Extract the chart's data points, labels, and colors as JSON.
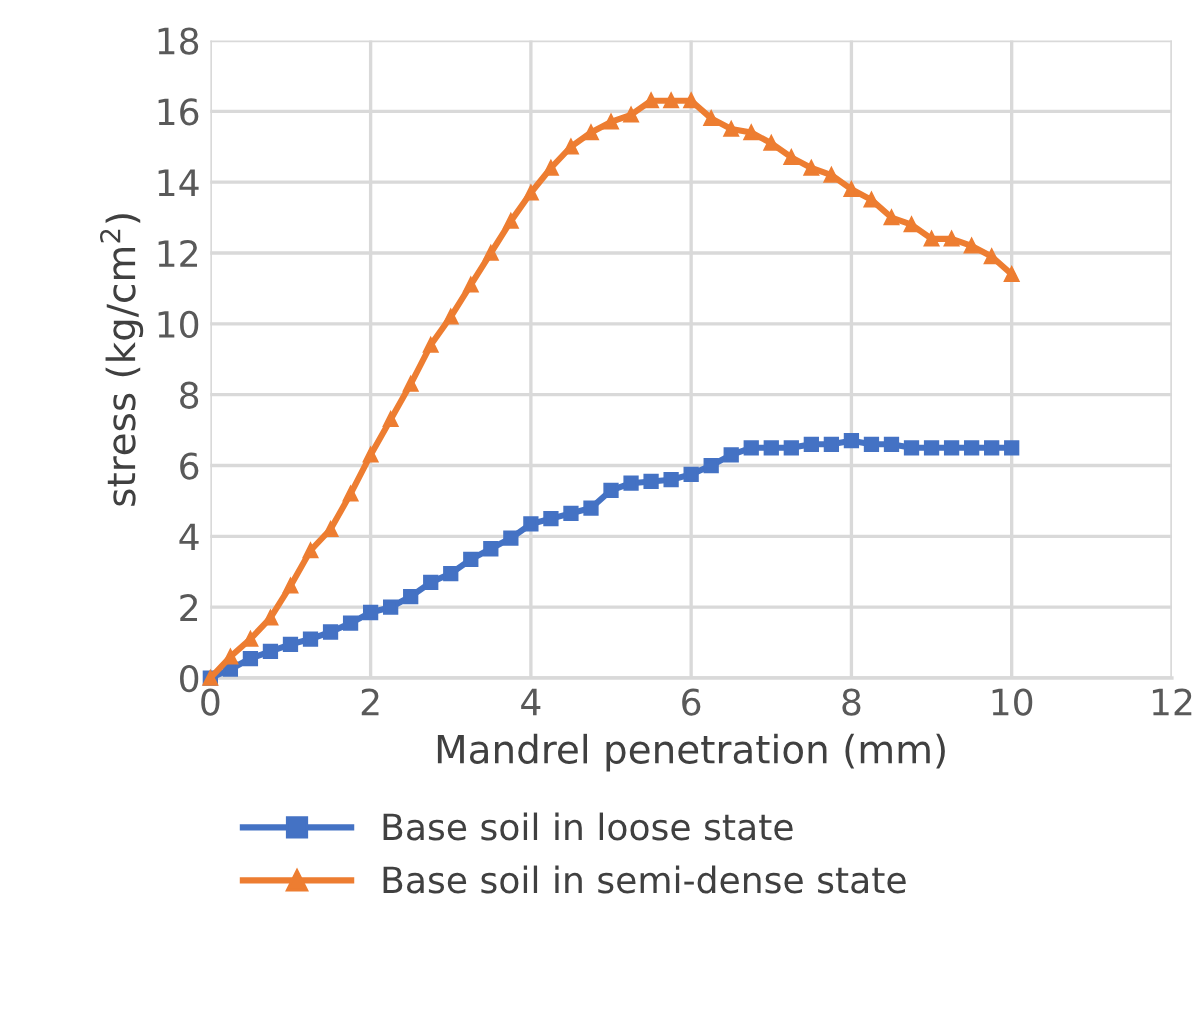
{
  "chart_data": {
    "type": "line",
    "xlabel": "Mandrel penetration (mm)",
    "ylabel": "stress (kg/cm$^{2}$)",
    "x": [
      0,
      0.25,
      0.5,
      0.75,
      1,
      1.25,
      1.5,
      1.75,
      2,
      2.25,
      2.5,
      2.75,
      3,
      3.25,
      3.5,
      3.75,
      4,
      4.25,
      4.5,
      4.75,
      5,
      5.25,
      5.5,
      5.75,
      6,
      6.25,
      6.5,
      6.75,
      7,
      7.25,
      7.5,
      7.75,
      8,
      8.25,
      8.5,
      8.75,
      9,
      9.25,
      9.5,
      9.75,
      10
    ],
    "series": [
      {
        "name": "Base soil in loose state",
        "color": "#4472c4",
        "marker": "square",
        "values": [
          0,
          0.25,
          0.55,
          0.75,
          0.95,
          1.1,
          1.3,
          1.55,
          1.85,
          2.0,
          2.3,
          2.7,
          2.95,
          3.35,
          3.65,
          3.95,
          4.35,
          4.5,
          4.65,
          4.8,
          5.3,
          5.5,
          5.55,
          5.6,
          5.75,
          6.0,
          6.3,
          6.5,
          6.5,
          6.5,
          6.6,
          6.6,
          6.7,
          6.6,
          6.6,
          6.5,
          6.5,
          6.5,
          6.5,
          6.5,
          6.5
        ]
      },
      {
        "name": "Base soil in semi-dense state",
        "color": "#ed7d31",
        "marker": "triangle",
        "values": [
          0,
          0.6,
          1.1,
          1.7,
          2.6,
          3.6,
          4.2,
          5.2,
          6.3,
          7.3,
          8.3,
          9.4,
          10.2,
          11.1,
          12.0,
          12.9,
          13.7,
          14.4,
          15.0,
          15.4,
          15.7,
          15.9,
          16.3,
          16.3,
          16.3,
          15.8,
          15.5,
          15.4,
          15.1,
          14.7,
          14.4,
          14.2,
          13.8,
          13.5,
          13.0,
          12.8,
          12.4,
          12.4,
          12.2,
          11.9,
          11.4
        ]
      }
    ],
    "xlim": [
      0,
      12
    ],
    "xticks": [
      0,
      2,
      4,
      6,
      8,
      10,
      12
    ],
    "ylim": [
      0,
      18
    ],
    "yticks": [
      0,
      2,
      4,
      6,
      8,
      10,
      12,
      14,
      16,
      18
    ],
    "grid": true,
    "legend": "bottom",
    "line_style": "solid"
  }
}
